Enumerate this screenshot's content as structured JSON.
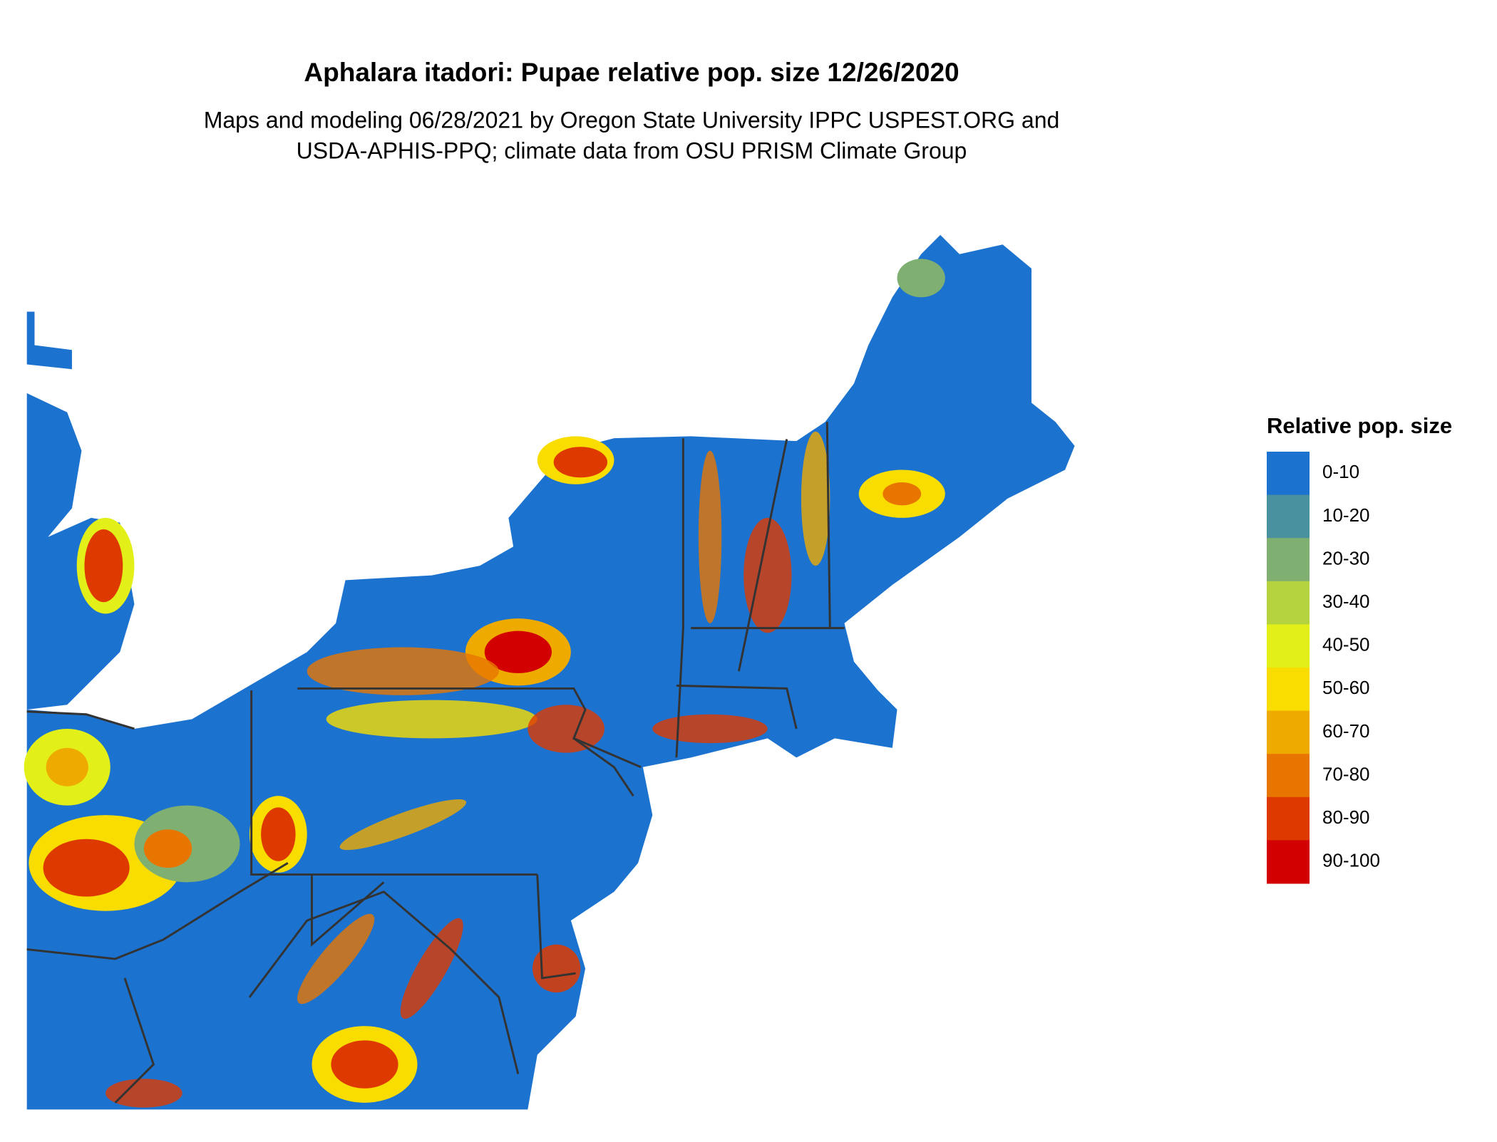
{
  "title": "Aphalara itadori: Pupae relative pop. size 12/26/2020",
  "subtitle": [
    "Maps and modeling 06/28/2021 by Oregon State University IPPC USPEST.ORG and",
    "USDA-APHIS-PPQ; climate data from OSU PRISM Climate Group"
  ],
  "legend": {
    "title": "Relative pop. size",
    "items": [
      {
        "label": "0-10",
        "color": "#1c72cf"
      },
      {
        "label": "10-20",
        "color": "#4a91a0"
      },
      {
        "label": "20-30",
        "color": "#7fb071"
      },
      {
        "label": "30-40",
        "color": "#b5d23f"
      },
      {
        "label": "40-50",
        "color": "#e3ef18"
      },
      {
        "label": "50-60",
        "color": "#f9dd00"
      },
      {
        "label": "60-70",
        "color": "#efaa00"
      },
      {
        "label": "70-80",
        "color": "#e87500"
      },
      {
        "label": "80-90",
        "color": "#de3a00"
      },
      {
        "label": "90-100",
        "color": "#d20000"
      }
    ]
  }
}
